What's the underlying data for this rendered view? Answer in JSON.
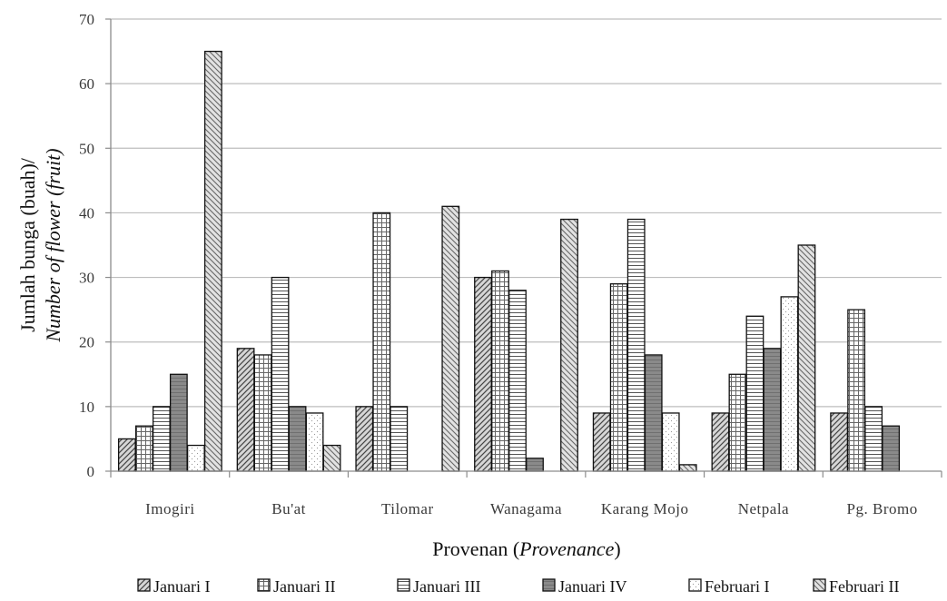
{
  "chart_data": {
    "type": "bar",
    "categories": [
      "Imogiri",
      "Bu'at",
      "Tilomar",
      "Wanagama",
      "Karang Mojo",
      "Netpala",
      "Pg. Bromo"
    ],
    "series": [
      {
        "name": "Januari I",
        "pattern": "diag-right",
        "values": [
          5,
          19,
          10,
          30,
          9,
          9,
          9
        ]
      },
      {
        "name": "Januari II",
        "pattern": "grid",
        "values": [
          7,
          18,
          40,
          31,
          29,
          15,
          25
        ]
      },
      {
        "name": "Januari III",
        "pattern": "horizontal",
        "values": [
          10,
          30,
          10,
          28,
          39,
          24,
          10
        ]
      },
      {
        "name": "Januari IV",
        "pattern": "dark",
        "values": [
          15,
          10,
          0,
          2,
          18,
          19,
          7
        ]
      },
      {
        "name": "Februari I",
        "pattern": "dots",
        "values": [
          4,
          9,
          0,
          0,
          9,
          27,
          0
        ]
      },
      {
        "name": "Februari II",
        "pattern": "diag-left",
        "values": [
          65,
          4,
          41,
          39,
          1,
          35,
          0
        ]
      }
    ],
    "ylim": [
      0,
      70
    ],
    "yticks": [
      "0",
      "10",
      "20",
      "30",
      "40",
      "50",
      "60",
      "70"
    ],
    "ylabel_line1": "Jumlah bunga (buah)/",
    "ylabel_line2": "Number of flower (fruit)",
    "xlabel_plain": "Provenan (",
    "xlabel_italic": "Provenance",
    "xlabel_close": ")",
    "grid": true,
    "legend_position": "bottom"
  }
}
